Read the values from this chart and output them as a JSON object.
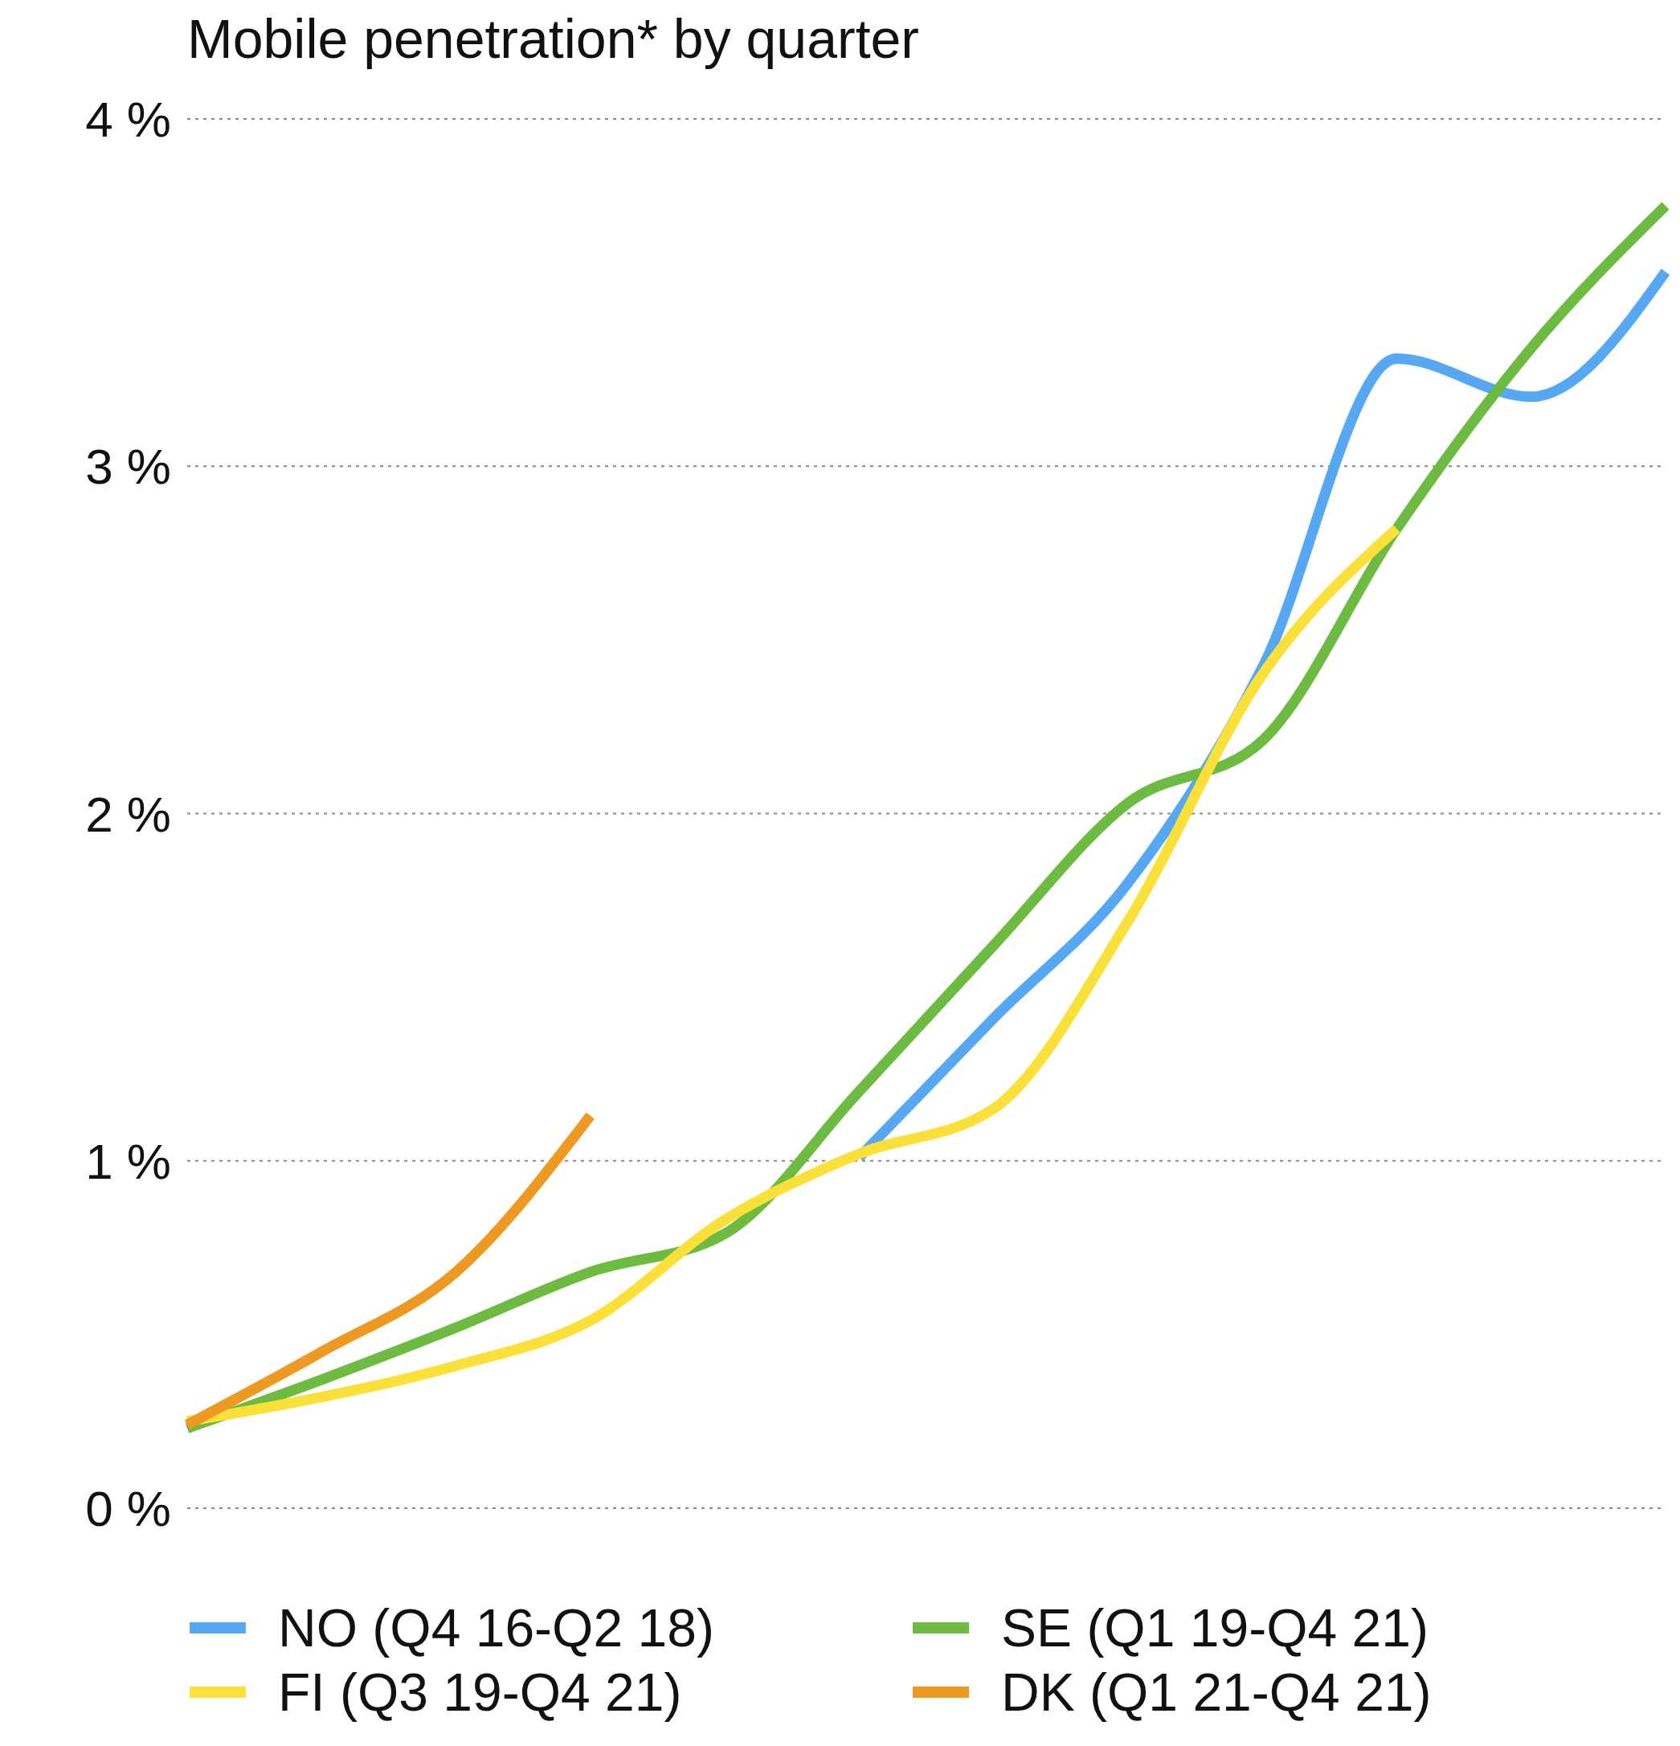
{
  "chart_data": {
    "type": "line",
    "title": "Mobile penetration* by quarter",
    "categories": [
      null,
      null,
      null,
      null,
      null,
      null,
      null,
      null,
      null,
      null,
      null,
      null
    ],
    "series": [
      {
        "name": "NO (Q4 16-Q2 18)",
        "color": "#56a8f5",
        "values": [
          null,
          null,
          null,
          null,
          null,
          1.01,
          1.41,
          1.8,
          2.42,
          3.31,
          3.2,
          3.56
        ]
      },
      {
        "name": "SE (Q1 19-Q4 21)",
        "color": "#6dbb40",
        "values": [
          0.23,
          0.37,
          0.52,
          0.68,
          0.79,
          1.2,
          1.62,
          2.03,
          2.21,
          2.82,
          3.34,
          3.75
        ]
      },
      {
        "name": "FI (Q3 19-Q4 21)",
        "color": "#fbe03a",
        "values": [
          0.25,
          0.32,
          0.41,
          0.54,
          0.83,
          1.02,
          1.15,
          1.69,
          2.4,
          2.82,
          null,
          null
        ]
      },
      {
        "name": "DK (Q1 21-Q4 21)",
        "color": "#ee9a22",
        "values": [
          0.24,
          0.45,
          0.68,
          1.13,
          null,
          null,
          null,
          null,
          null,
          null,
          null,
          null
        ]
      }
    ],
    "ylim": [
      0,
      4
    ],
    "yticks": [
      {
        "value": 0,
        "label": "0 %"
      },
      {
        "value": 1,
        "label": "1 %"
      },
      {
        "value": 2,
        "label": "2 %"
      },
      {
        "value": 3,
        "label": "3 %"
      },
      {
        "value": 4,
        "label": "4 %"
      }
    ],
    "grid": "y",
    "legend": "bottom",
    "marker": "none",
    "line_style": "solid",
    "tick_labels": "y"
  }
}
